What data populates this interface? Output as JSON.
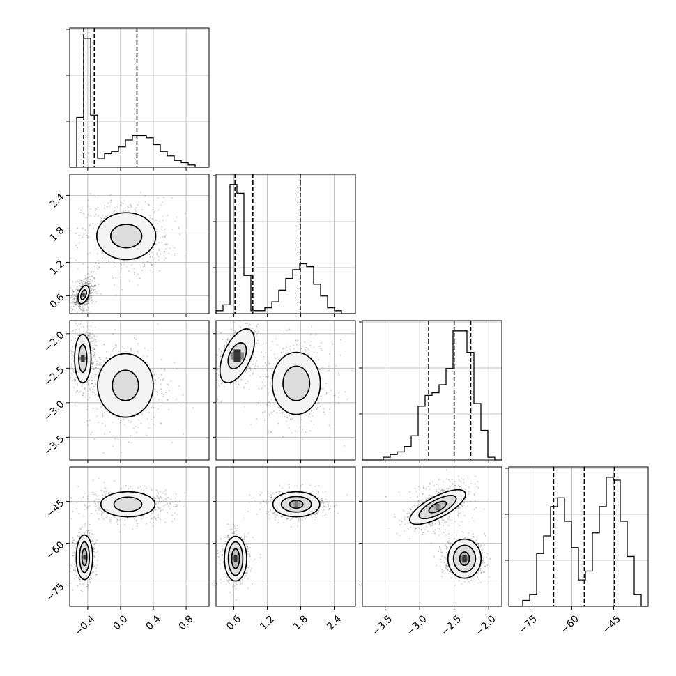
{
  "chart_data": {
    "type": "corner",
    "variables": [
      {
        "ticks": [
          -0.4,
          0.0,
          0.4,
          0.8
        ],
        "tick_labels": [
          "−0.4",
          "0.0",
          "0.4",
          "0.8"
        ],
        "range": [
          -0.62,
          1.08
        ],
        "quantiles": [
          -0.45,
          -0.32,
          0.2
        ]
      },
      {
        "ticks": [
          0.6,
          1.2,
          1.8,
          2.4
        ],
        "tick_labels": [
          "0.6",
          "1.2",
          "1.8",
          "2.4"
        ],
        "range": [
          0.28,
          2.78
        ],
        "quantiles": [
          0.62,
          0.94,
          1.79
        ]
      },
      {
        "ticks": [
          -3.5,
          -3.0,
          -2.5,
          -2.0
        ],
        "tick_labels": [
          "−3.5",
          "−3.0",
          "−2.5",
          "−2.0"
        ],
        "range": [
          -3.83,
          -1.81
        ],
        "quantiles": [
          -2.87,
          -2.5,
          -2.26
        ]
      },
      {
        "ticks": [
          -75,
          -60,
          -45
        ],
        "tick_labels": [
          "−75",
          "−60",
          "−45"
        ],
        "range": [
          -82.6,
          -32.6
        ],
        "quantiles": [
          -66.5,
          -55.5,
          -44.7
        ]
      }
    ],
    "histograms": [
      {
        "variable": 0,
        "values": [
          0,
          22,
          57,
          23,
          4,
          6,
          7,
          9,
          12,
          14,
          14,
          13,
          10,
          7,
          5,
          3,
          2,
          1,
          0,
          0
        ]
      },
      {
        "variable": 1,
        "values": [
          1,
          3,
          44,
          41,
          13,
          1,
          1,
          2,
          4,
          8,
          12,
          15,
          17,
          16,
          10,
          6,
          2,
          1,
          0,
          0
        ]
      },
      {
        "variable": 2,
        "values": [
          0,
          0,
          0,
          1,
          2,
          3,
          5,
          9,
          20,
          24,
          25,
          28,
          34,
          48,
          48,
          40,
          21,
          11,
          1,
          0
        ]
      },
      {
        "variable": 3,
        "values": [
          0,
          0,
          2,
          4,
          18,
          24,
          34,
          37,
          29,
          20,
          9,
          12,
          25,
          34,
          44,
          43,
          29,
          17,
          4,
          0
        ]
      }
    ],
    "scatter_panels": [
      {
        "x_var": 0,
        "y_var": 1,
        "clusters": [
          {
            "center": [
              -0.45,
              0.62
            ],
            "spread": [
              0.05,
              0.12
            ],
            "rotation": -20,
            "levels": [
              [
                0.06,
                0.17
              ],
              [
                0.03,
                0.09
              ]
            ],
            "peak": 2
          },
          {
            "center": [
              0.07,
              1.67
            ],
            "spread": [
              0.22,
              0.27
            ],
            "rotation": 0,
            "levels": [
              [
                0.36,
                0.42
              ],
              [
                0.19,
                0.21
              ]
            ],
            "peak": 0
          }
        ]
      },
      {
        "x_var": 0,
        "y_var": 2,
        "clusters": [
          {
            "center": [
              -0.46,
              -2.36
            ],
            "spread": [
              0.06,
              0.18
            ],
            "rotation": 0,
            "levels": [
              [
                0.1,
                0.35
              ],
              [
                0.05,
                0.2
              ]
            ],
            "peak": 2
          },
          {
            "center": [
              0.06,
              -2.75
            ],
            "spread": [
              0.2,
              0.26
            ],
            "rotation": 0,
            "levels": [
              [
                0.34,
                0.46
              ],
              [
                0.16,
                0.22
              ]
            ],
            "peak": 0
          }
        ]
      },
      {
        "x_var": 1,
        "y_var": 2,
        "clusters": [
          {
            "center": [
              0.66,
              -2.32
            ],
            "spread": [
              0.12,
              0.18
            ],
            "rotation": -25,
            "levels": [
              [
                0.24,
                0.42
              ],
              [
                0.14,
                0.2
              ]
            ],
            "peak": 2
          },
          {
            "center": [
              1.72,
              -2.72
            ],
            "spread": [
              0.27,
              0.24
            ],
            "rotation": 0,
            "levels": [
              [
                0.43,
                0.45
              ],
              [
                0.24,
                0.25
              ]
            ],
            "peak": 0
          }
        ]
      },
      {
        "x_var": 0,
        "y_var": 3,
        "clusters": [
          {
            "center": [
              -0.44,
              -65.0
            ],
            "spread": [
              0.05,
              3.5
            ],
            "rotation": 0,
            "levels": [
              [
                0.1,
                8.0
              ],
              [
                0.06,
                5.5
              ],
              [
                0.03,
                3.0
              ]
            ],
            "peak": 2
          },
          {
            "center": [
              0.09,
              -46.0
            ],
            "spread": [
              0.23,
              2.4
            ],
            "rotation": 0,
            "levels": [
              [
                0.33,
                4.5
              ],
              [
                0.17,
                2.6
              ]
            ],
            "peak": 0
          }
        ]
      },
      {
        "x_var": 1,
        "y_var": 3,
        "clusters": [
          {
            "center": [
              0.63,
              -65.5
            ],
            "spread": [
              0.1,
              3.5
            ],
            "rotation": 0,
            "levels": [
              [
                0.2,
                8.0
              ],
              [
                0.13,
                6.0
              ],
              [
                0.07,
                3.5
              ]
            ],
            "peak": 2
          },
          {
            "center": [
              1.72,
              -46.0
            ],
            "spread": [
              0.22,
              2.2
            ],
            "rotation": 0,
            "levels": [
              [
                0.42,
                4.5
              ],
              [
                0.27,
                2.8
              ],
              [
                0.12,
                1.4
              ]
            ],
            "peak": 1
          }
        ]
      },
      {
        "x_var": 2,
        "y_var": 3,
        "clusters": [
          {
            "center": [
              -2.74,
              -47.0
            ],
            "spread": [
              0.2,
              3.0
            ],
            "rotation": 28,
            "levels": [
              [
                0.45,
                3.8
              ],
              [
                0.3,
                2.6
              ],
              [
                0.14,
                1.4
              ]
            ],
            "peak": 1
          },
          {
            "center": [
              -2.35,
              -65.5
            ],
            "spread": [
              0.12,
              3.0
            ],
            "rotation": 0,
            "levels": [
              [
                0.24,
                7.0
              ],
              [
                0.16,
                4.8
              ],
              [
                0.07,
                2.4
              ]
            ],
            "peak": 2
          }
        ]
      }
    ],
    "grid": true,
    "quantile_line_style": "dashed"
  }
}
